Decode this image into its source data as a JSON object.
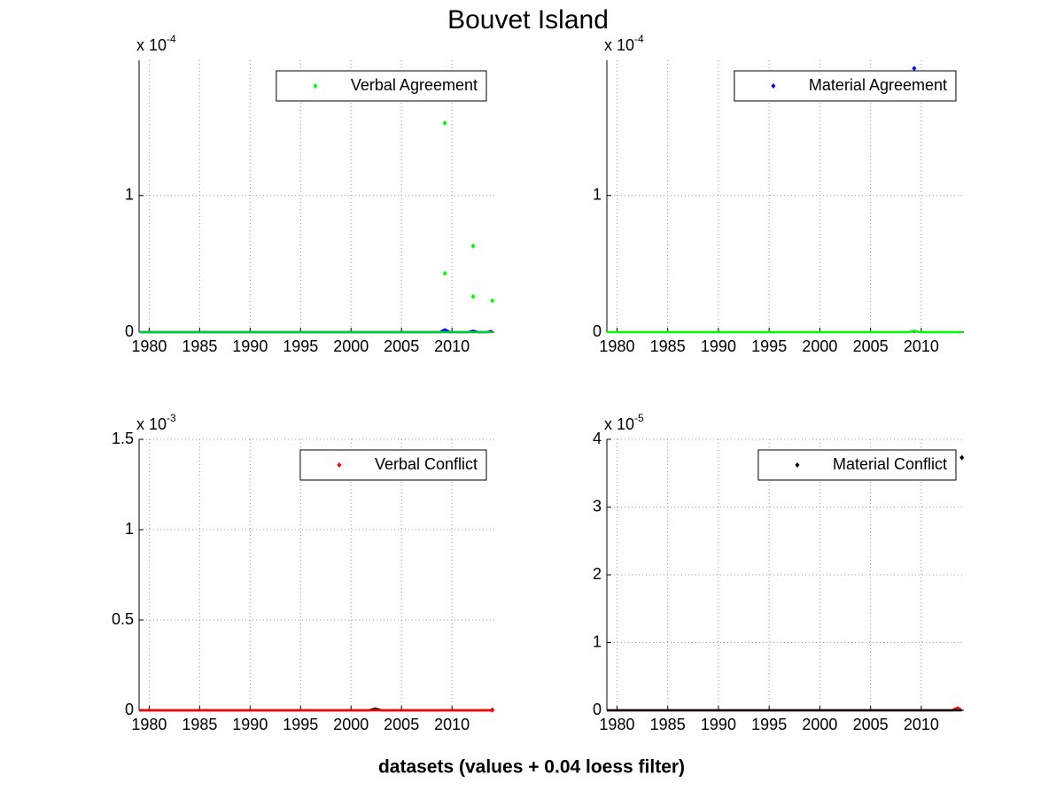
{
  "title": "Bouvet Island",
  "xlabel": "datasets (values + 0.04 loess filter)",
  "chart_data": [
    {
      "type": "scatter",
      "xlim": [
        1979,
        2014.2
      ],
      "xticks": [
        1980,
        1985,
        1990,
        1995,
        2000,
        2005,
        2010
      ],
      "ylim": [
        0,
        1.99
      ],
      "yticks": [
        0,
        1
      ],
      "y_multiplier": {
        "base": "x 10",
        "exponent": "-4"
      },
      "grid": true,
      "legend": "upper right",
      "series": [
        {
          "name": "Verbal Agreement",
          "color": "#00ff00",
          "style": "dots",
          "x": [
            2009.3,
            2009.3,
            2012.1,
            2012.1,
            2014
          ],
          "values": [
            1.53,
            0.43,
            0.63,
            0.26,
            0.23
          ]
        },
        {
          "color": "#0000ff",
          "style": "line",
          "x": [
            1979,
            2008.8,
            2009.3,
            2009.8,
            2011.6,
            2012.1,
            2012.6,
            2013.5,
            2014
          ],
          "values": [
            0,
            0,
            0.02,
            0,
            0,
            0.01,
            0,
            0,
            0.01
          ]
        },
        {
          "color": "#00cc33",
          "style": "line",
          "x": [
            1979,
            2014
          ],
          "values": [
            0,
            0
          ]
        }
      ]
    },
    {
      "type": "scatter",
      "xlim": [
        1979,
        2014.2
      ],
      "xticks": [
        1980,
        1985,
        1990,
        1995,
        2000,
        2005,
        2010
      ],
      "ylim": [
        0,
        1.99
      ],
      "yticks": [
        0,
        1
      ],
      "y_multiplier": {
        "base": "x 10",
        "exponent": "-4"
      },
      "grid": true,
      "legend": "upper right",
      "series": [
        {
          "name": "Material Agreement",
          "color": "#0000ff",
          "style": "dots",
          "x": [
            2009.3
          ],
          "values": [
            1.93
          ]
        },
        {
          "color": "#00ff00",
          "style": "line",
          "x": [
            1979,
            2008.8,
            2009.3,
            2009.8,
            2014
          ],
          "values": [
            0,
            0,
            0.01,
            0,
            0
          ]
        }
      ]
    },
    {
      "type": "scatter",
      "xlim": [
        1979,
        2014.2
      ],
      "xticks": [
        1980,
        1985,
        1990,
        1995,
        2000,
        2005,
        2010
      ],
      "ylim": [
        0,
        1.5
      ],
      "yticks": [
        0,
        0.5,
        1,
        1.5
      ],
      "y_multiplier": {
        "base": "x 10",
        "exponent": "-3"
      },
      "grid": true,
      "legend": "upper right",
      "series": [
        {
          "name": "Verbal Conflict",
          "color": "#ff0000",
          "style": "dots",
          "x": [
            2014
          ],
          "values": [
            0.002
          ]
        },
        {
          "color": "#000000",
          "style": "line",
          "x": [
            1979,
            2001.8,
            2002.4,
            2003,
            2014
          ],
          "values": [
            0,
            0,
            0.01,
            0,
            0
          ]
        },
        {
          "color": "#ff0000",
          "style": "line",
          "x": [
            1979,
            2014
          ],
          "values": [
            0,
            0
          ]
        }
      ]
    },
    {
      "type": "scatter",
      "xlim": [
        1979,
        2014.2
      ],
      "xticks": [
        1980,
        1985,
        1990,
        1995,
        2000,
        2005,
        2010
      ],
      "ylim": [
        0,
        4
      ],
      "yticks": [
        0,
        1,
        2,
        3,
        4
      ],
      "y_multiplier": {
        "base": "x 10",
        "exponent": "-5"
      },
      "grid": true,
      "legend": "upper right",
      "series": [
        {
          "name": "Material Conflict",
          "color": "#000000",
          "style": "dots",
          "x": [
            2014
          ],
          "values": [
            3.73
          ]
        },
        {
          "color": "#ff0000",
          "style": "line",
          "x": [
            1979,
            2013,
            2013.6,
            2014
          ],
          "values": [
            0,
            0,
            0.04,
            0
          ]
        },
        {
          "color": "#000000",
          "style": "line",
          "x": [
            1979,
            2014
          ],
          "values": [
            0,
            0
          ]
        }
      ]
    }
  ]
}
